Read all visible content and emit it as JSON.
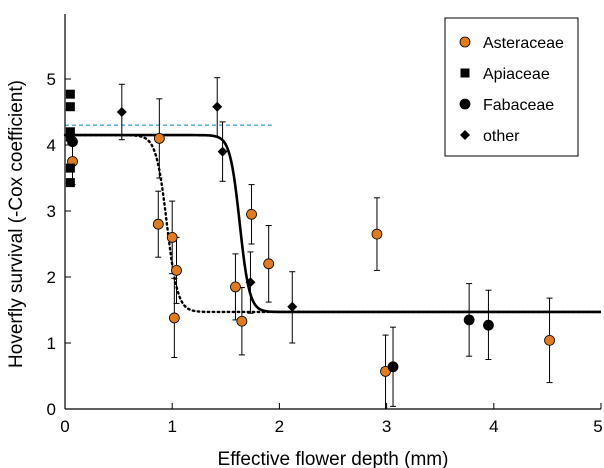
{
  "chart_data": {
    "type": "scatter",
    "title": "",
    "xlabel": "Effective flower depth (mm)",
    "ylabel": "Hoverfly survival (-Cox coefficient)",
    "xlim": [
      0,
      5
    ],
    "ylim": [
      0,
      5.4
    ],
    "x_ticks": [
      "0",
      "1",
      "2",
      "3",
      "4",
      "5"
    ],
    "y_ticks": [
      "0",
      "1",
      "2",
      "3",
      "4",
      "5"
    ],
    "grid": false,
    "legend_position": "top-right",
    "legend": [
      {
        "name": "Asteraceae",
        "marker": "circle",
        "color": "#E07B20"
      },
      {
        "name": "Apiaceae",
        "marker": "square",
        "color": "#000000"
      },
      {
        "name": "Fabaceae",
        "marker": "circle",
        "color": "#000000"
      },
      {
        "name": "other",
        "marker": "diamond",
        "color": "#000000"
      }
    ],
    "series": [
      {
        "name": "Asteraceae",
        "marker": "circle",
        "color": "#E07B20",
        "points": [
          {
            "x": 0.07,
            "y": 3.75,
            "lo": 3.4,
            "hi": 4.15
          },
          {
            "x": 0.87,
            "y": 2.8,
            "lo": 2.3,
            "hi": 3.3
          },
          {
            "x": 0.88,
            "y": 4.1,
            "lo": 3.5,
            "hi": 4.7
          },
          {
            "x": 1.0,
            "y": 2.6,
            "lo": 2.05,
            "hi": 3.15
          },
          {
            "x": 1.02,
            "y": 1.38,
            "lo": 0.78,
            "hi": 1.98
          },
          {
            "x": 1.04,
            "y": 2.1,
            "lo": 1.6,
            "hi": 2.6
          },
          {
            "x": 1.59,
            "y": 1.85,
            "lo": 1.35,
            "hi": 2.35
          },
          {
            "x": 1.65,
            "y": 1.33,
            "lo": 0.82,
            "hi": 1.84
          },
          {
            "x": 1.74,
            "y": 2.95,
            "lo": 2.5,
            "hi": 3.4
          },
          {
            "x": 1.9,
            "y": 2.2,
            "lo": 1.62,
            "hi": 2.78
          },
          {
            "x": 2.91,
            "y": 2.65,
            "lo": 2.1,
            "hi": 3.2
          },
          {
            "x": 2.99,
            "y": 0.57,
            "lo": 0.0,
            "hi": 1.12
          },
          {
            "x": 4.52,
            "y": 1.04,
            "lo": 0.4,
            "hi": 1.68
          }
        ]
      },
      {
        "name": "Apiaceae",
        "marker": "square",
        "color": "#000000",
        "points": [
          {
            "x": 0.05,
            "y": 4.77
          },
          {
            "x": 0.05,
            "y": 4.58
          },
          {
            "x": 0.05,
            "y": 4.2
          },
          {
            "x": 0.05,
            "y": 4.12
          },
          {
            "x": 0.05,
            "y": 3.65
          },
          {
            "x": 0.05,
            "y": 3.43
          }
        ]
      },
      {
        "name": "Fabaceae",
        "marker": "circle",
        "color": "#000000",
        "points": [
          {
            "x": 0.07,
            "y": 4.05
          },
          {
            "x": 3.06,
            "y": 0.64,
            "lo": 0.04,
            "hi": 1.24
          },
          {
            "x": 3.77,
            "y": 1.35,
            "lo": 0.8,
            "hi": 1.9
          },
          {
            "x": 3.95,
            "y": 1.27,
            "lo": 0.75,
            "hi": 1.8
          }
        ]
      },
      {
        "name": "other",
        "marker": "diamond",
        "color": "#000000",
        "points": [
          {
            "x": 0.53,
            "y": 4.5,
            "lo": 4.08,
            "hi": 4.92
          },
          {
            "x": 1.42,
            "y": 4.58,
            "lo": 4.12,
            "hi": 5.02
          },
          {
            "x": 1.47,
            "y": 3.9,
            "lo": 3.45,
            "hi": 4.35
          },
          {
            "x": 1.73,
            "y": 1.92,
            "lo": 1.45,
            "hi": 2.38
          },
          {
            "x": 2.12,
            "y": 1.55,
            "lo": 1.0,
            "hi": 2.08
          }
        ]
      }
    ],
    "fits": [
      {
        "style": "solid",
        "color": "#000000",
        "upper": 4.15,
        "lower": 1.47,
        "midpoint": 1.63,
        "steepness": 22
      },
      {
        "style": "dotted",
        "color": "#000000",
        "upper": 4.15,
        "lower": 1.47,
        "midpoint": 0.95,
        "steepness": 20
      }
    ],
    "reference_line": {
      "style": "dashed",
      "color": "#4AA8D8",
      "y": 4.3,
      "x_range": [
        0,
        1.93
      ]
    }
  }
}
